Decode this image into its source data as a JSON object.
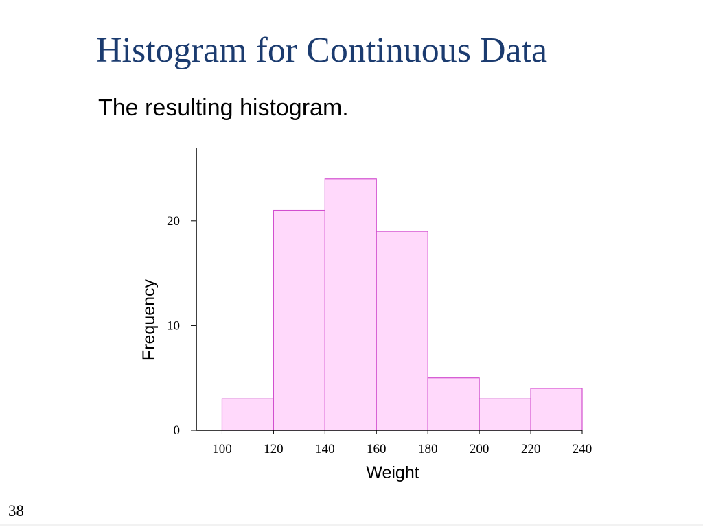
{
  "slide": {
    "title": "Histogram for Continuous Data",
    "subtitle": "The resulting histogram.",
    "page_number": 38
  },
  "chart_data": {
    "type": "histogram",
    "xlabel": "Weight",
    "ylabel": "Frequency",
    "bins": [
      100,
      120,
      140,
      160,
      180,
      200,
      220,
      240
    ],
    "values": [
      3,
      21,
      24,
      19,
      5,
      3,
      4
    ],
    "color": "#ffd9fb",
    "edgecolor": "#d24fcf",
    "xlim": [
      90,
      240
    ],
    "ylim": [
      0,
      27
    ],
    "xticks": [
      100,
      120,
      140,
      160,
      180,
      200,
      220,
      240
    ],
    "yticks": [
      0,
      10,
      20
    ]
  }
}
